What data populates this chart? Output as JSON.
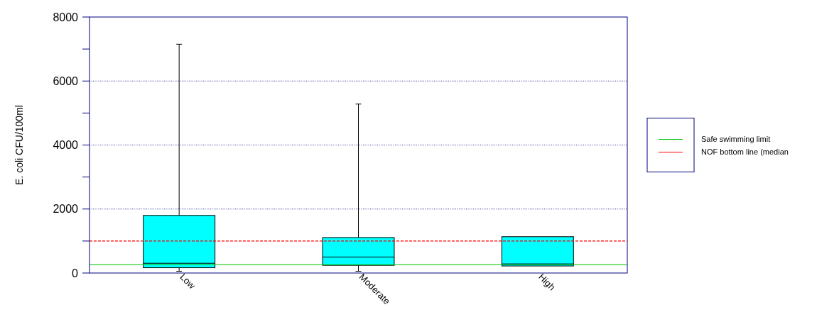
{
  "chart_data": {
    "type": "box",
    "ylabel": "E. coli CFU/100ml",
    "categories": [
      "Low",
      "Moderate",
      "High"
    ],
    "series": [
      {
        "color": "#00ffff",
        "boxes": [
          {
            "low": 55,
            "q1": 165,
            "median": 305,
            "q3": 1800,
            "high": 7150
          },
          {
            "low": 55,
            "q1": 240,
            "median": 500,
            "q3": 1110,
            "high": 5280
          },
          {
            "low": 220,
            "q1": 220,
            "median": 285,
            "q3": 1135,
            "high": 1135
          }
        ]
      }
    ],
    "ylim": [
      0,
      8000
    ],
    "yticks": [
      0,
      {
        "value": 1000,
        "label": null
      },
      2000,
      {
        "value": 3000,
        "label": null
      },
      4000,
      {
        "value": 5000,
        "label": null
      },
      6000,
      {
        "value": 7000,
        "label": null
      },
      8000
    ],
    "grid": "y",
    "ref_lines": [
      {
        "axis": "y",
        "value": 260,
        "label": "Safe swimming limit",
        "color": "#00c000",
        "line_style": "solid"
      },
      {
        "axis": "y",
        "value": 1000,
        "label": "NOF bottom line (median",
        "color": "#ff0000",
        "line_style": "dashed"
      }
    ],
    "legend": "right"
  }
}
